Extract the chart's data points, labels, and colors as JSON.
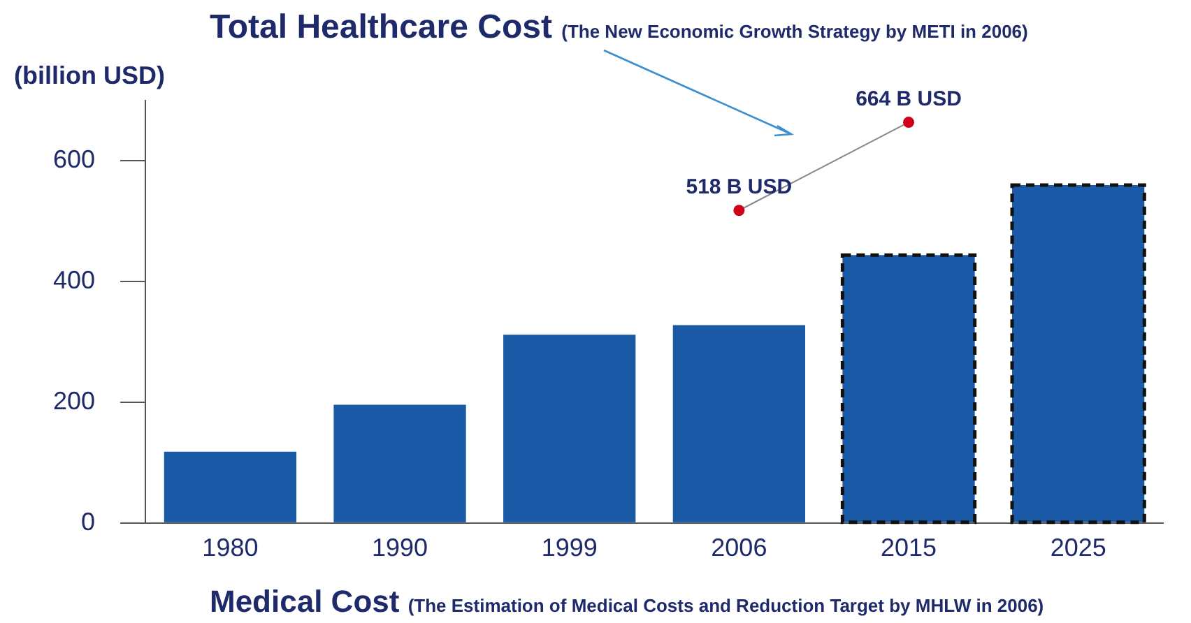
{
  "chart_data": {
    "type": "bar",
    "title": "Total Healthcare Cost",
    "subtitle": "(The New Economic Growth Strategy by METI  in 2006)",
    "xlabel": "Medical Cost (The Estimation of Medical Costs and Reduction Target by MHLW in 2006)",
    "ylabel": "(billion USD)",
    "categories": [
      "1980",
      "1990",
      "1999",
      "2006",
      "2015",
      "2025"
    ],
    "series": [
      {
        "color": "#1a5aa6",
        "values": [
          118,
          196,
          312,
          328,
          null,
          null
        ]
      },
      {
        "color": "#1a5aa6",
        "line_style": "dashed",
        "values": [
          null,
          null,
          null,
          null,
          444,
          560
        ]
      },
      {
        "type": "line",
        "color": "#d0021b",
        "marker": "circle",
        "values": [
          null,
          null,
          null,
          518,
          664,
          null
        ],
        "value_labels": [
          null,
          null,
          null,
          "518 B USD",
          "664 B USD",
          null
        ]
      }
    ],
    "ylim": [
      0,
      700
    ],
    "yticks": [
      0,
      200,
      400,
      600
    ],
    "grid": false,
    "legend": false
  }
}
